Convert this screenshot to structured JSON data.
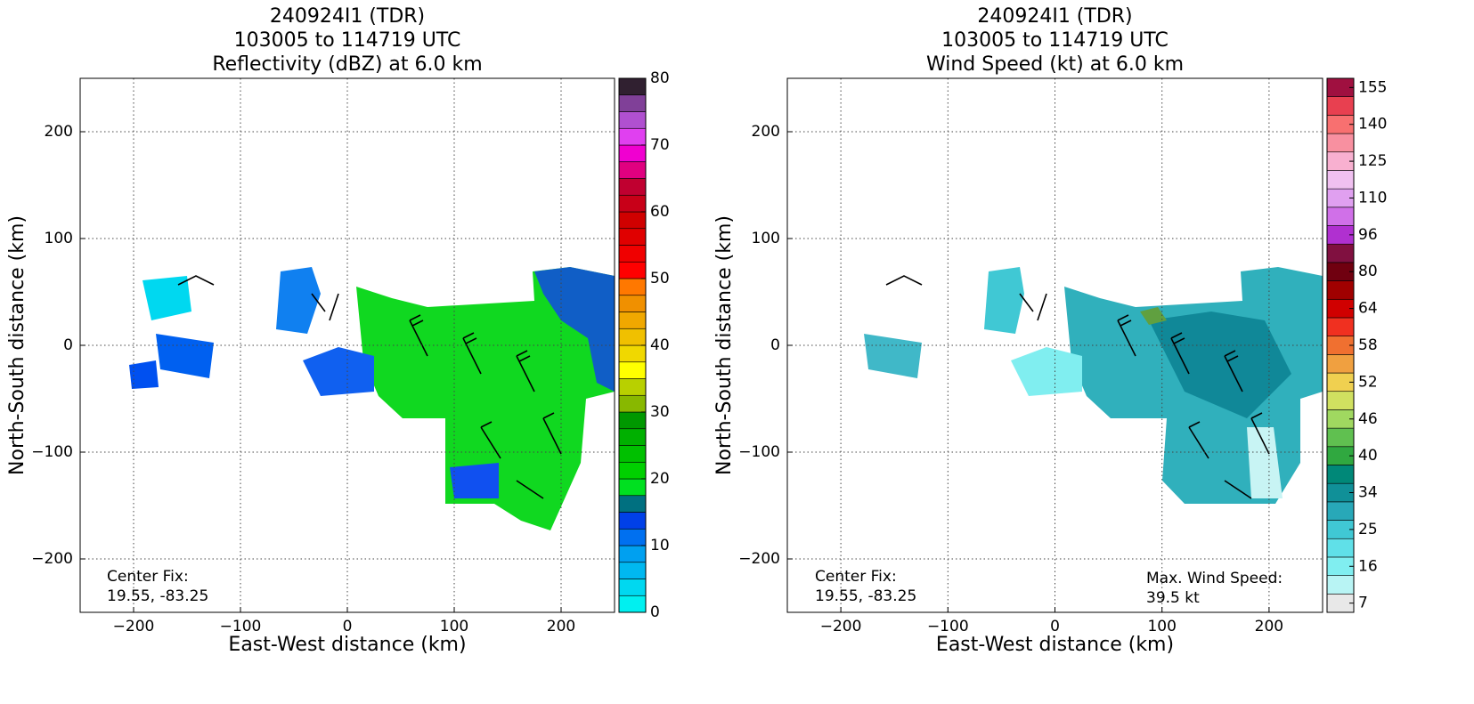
{
  "chart_data": [
    {
      "type": "heatmap",
      "title": [
        "240924I1 (TDR)",
        "103005 to 114719 UTC",
        "Reflectivity (dBZ) at 6.0 km"
      ],
      "x_label": "East-West distance (km)",
      "y_label": "North-South distance (km)",
      "xlim": [
        -250,
        250
      ],
      "ylim": [
        -250,
        250
      ],
      "xticks": [
        {
          "value": -200,
          "label": "−200"
        },
        {
          "value": -100,
          "label": "−100"
        },
        0,
        100,
        200
      ],
      "yticks": [
        {
          "value": -200,
          "label": "−200"
        },
        {
          "value": -100,
          "label": "−100"
        },
        0,
        100,
        200
      ],
      "grid": true,
      "annotations": [
        [
          "Center Fix:",
          "19.55, -83.25"
        ]
      ],
      "colorbar": {
        "lim": [
          0,
          80
        ],
        "ticks": [
          0,
          10,
          20,
          30,
          40,
          50,
          60,
          70,
          80
        ],
        "colors": [
          "#00f0f0",
          "#00d8f0",
          "#00b8f0",
          "#00a0f0",
          "#0070f0",
          "#0040e8",
          "#007080",
          "#00e020",
          "#00d000",
          "#00c000",
          "#00b000",
          "#009800",
          "#88b800",
          "#b8d000",
          "#ffff00",
          "#f0d800",
          "#f0c000",
          "#f0a800",
          "#f09000",
          "#ff7800",
          "#ff0000",
          "#f00000",
          "#e00000",
          "#d00000",
          "#c80018",
          "#c00030",
          "#e00080",
          "#f000d0",
          "#e040f0",
          "#b050d0",
          "#804098",
          "#302030"
        ]
      }
    },
    {
      "type": "heatmap",
      "title": [
        "240924I1 (TDR)",
        "103005 to 114719 UTC",
        "Wind Speed (kt) at 6.0 km"
      ],
      "x_label": "East-West distance (km)",
      "y_label": "North-South distance (km)",
      "xlim": [
        -250,
        250
      ],
      "ylim": [
        -250,
        250
      ],
      "xticks": [
        {
          "value": -200,
          "label": "−200"
        },
        {
          "value": -100,
          "label": "−100"
        },
        0,
        100,
        200
      ],
      "yticks": [
        {
          "value": -200,
          "label": "−200"
        },
        {
          "value": -100,
          "label": "−100"
        },
        0,
        100,
        200
      ],
      "grid": true,
      "annotations": [
        [
          "Center Fix:",
          "19.55, -83.25"
        ],
        [
          "Max. Wind Speed:",
          "39.5 kt"
        ]
      ],
      "colorbar": {
        "ticks": [
          7,
          16,
          25,
          34,
          40,
          46,
          52,
          58,
          64,
          80,
          96,
          110,
          125,
          140,
          155
        ],
        "colors": [
          "#e8e8e8",
          "#b8f4f4",
          "#80eef0",
          "#60e0e8",
          "#40c8d4",
          "#28a8b8",
          "#109098",
          "#008878",
          "#30a840",
          "#60c050",
          "#a0d860",
          "#d0e060",
          "#f0d050",
          "#f0a040",
          "#f07030",
          "#f03020",
          "#d00000",
          "#a00000",
          "#700010",
          "#801040",
          "#b030d0",
          "#d070e8",
          "#e0a0f0",
          "#f0c0f0",
          "#f8b0d0",
          "#f890a0",
          "#f87070",
          "#e84050",
          "#a01040"
        ]
      }
    }
  ]
}
